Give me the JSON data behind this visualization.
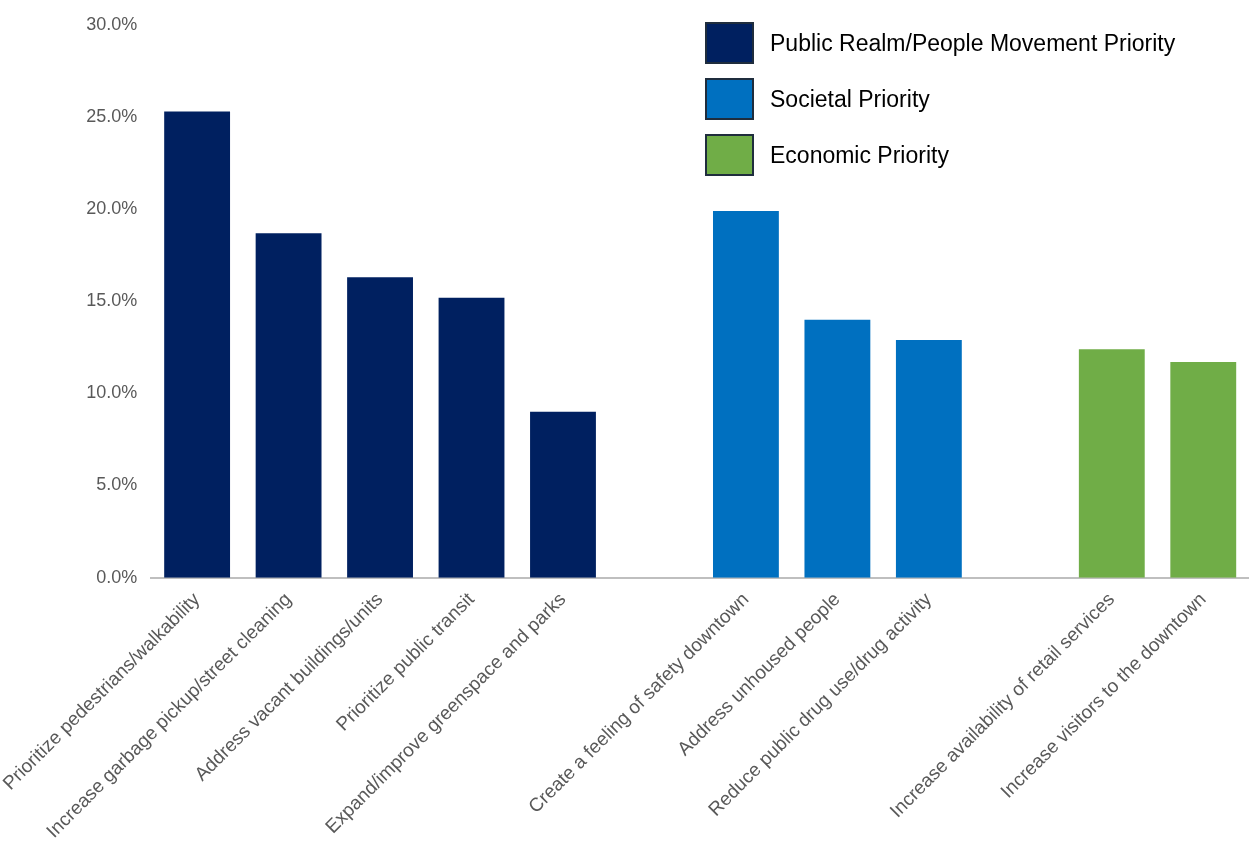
{
  "chart_data": {
    "type": "bar",
    "categories": [
      "Prioritize pedestrians/walkability",
      "Increase garbage pickup/street cleaning",
      "Address vacant buildings/units",
      "Prioritize public transit",
      "Expand/improve greenspace and parks",
      null,
      "Create a feeling of safety downtown",
      "Address unhoused people",
      "Reduce public drug use/drug activity",
      null,
      "Increase availability of retail services",
      "Increase visitors to the downtown"
    ],
    "series": [
      {
        "name": "Public Realm/People Movement Priority",
        "color": "#002060",
        "values": [
          25.3,
          18.7,
          16.3,
          15.2,
          9.0,
          null,
          null,
          null,
          null,
          null,
          null,
          null
        ]
      },
      {
        "name": "Societal Priority",
        "color": "#0070c0",
        "values": [
          null,
          null,
          null,
          null,
          null,
          null,
          19.9,
          14.0,
          12.9,
          null,
          null,
          null
        ]
      },
      {
        "name": "Economic Priority",
        "color": "#70ad47",
        "values": [
          null,
          null,
          null,
          null,
          null,
          null,
          null,
          null,
          null,
          null,
          12.4,
          11.7
        ]
      }
    ],
    "ylim": [
      0,
      30
    ],
    "yticks": [
      {
        "value": 0,
        "label": "0.0%"
      },
      {
        "value": 5,
        "label": "5.0%"
      },
      {
        "value": 10,
        "label": "10.0%"
      },
      {
        "value": 15,
        "label": "15.0%"
      },
      {
        "value": 20,
        "label": "20.0%"
      },
      {
        "value": 25,
        "label": "25.0%"
      },
      {
        "value": 30,
        "label": "30.0%"
      }
    ],
    "legend": "top right",
    "grid": false
  }
}
